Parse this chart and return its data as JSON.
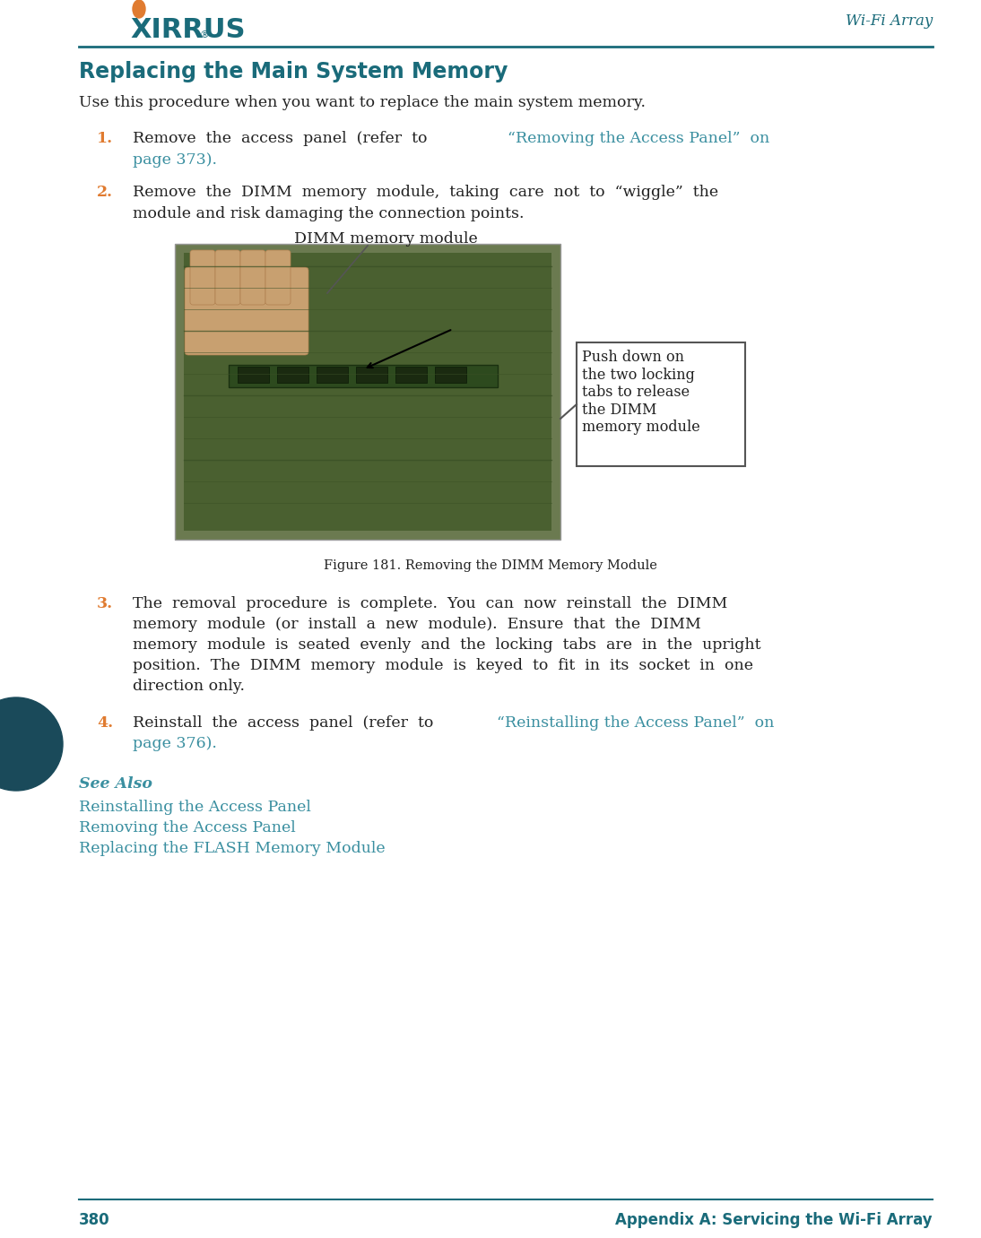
{
  "bg_color": "#ffffff",
  "teal_color": "#1a6b7a",
  "orange_color": "#e07b30",
  "link_color": "#3a8fa0",
  "dark_text": "#222222",
  "page_number": "380",
  "footer_text": "Appendix A: Servicing the Wi-Fi Array",
  "header_right": "Wi-Fi Array",
  "title": "Replacing the Main System Memory",
  "intro": "Use this procedure when you want to replace the main system memory.",
  "figure_caption": "Figure 181. Removing the DIMM Memory Module",
  "callout_label1": "DIMM memory module",
  "callout_label2": "Push down on\nthe two locking\ntabs to release\nthe DIMM\nmemory module",
  "see_also_label": "See Also",
  "see_also_links": [
    "Reinstalling the Access Panel",
    "Removing the Access Panel",
    "Replacing the FLASH Memory Module"
  ]
}
